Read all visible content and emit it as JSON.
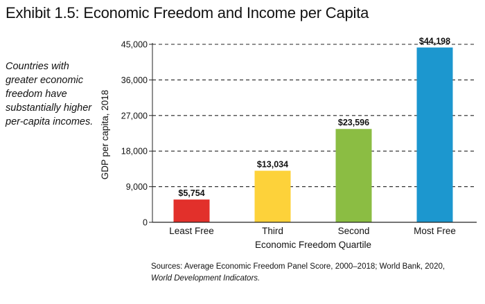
{
  "title": "Exhibit 1.5: Economic Freedom and Income per Capita",
  "sidenote": "Countries with greater economic freedom have substantially higher per-capita incomes.",
  "source": {
    "line": "Sources: Average Economic Freedom Panel Score, 2000–2018; World Bank, 2020,",
    "italic": "World Development Indicators."
  },
  "chart_data": {
    "type": "bar",
    "categories": [
      "Least Free",
      "Third",
      "Second",
      "Most Free"
    ],
    "values": [
      5754,
      13034,
      23596,
      44198
    ],
    "value_labels": [
      "$5,754",
      "$13,034",
      "$23,596",
      "$44,198"
    ],
    "colors": [
      "#e2302b",
      "#fdd23a",
      "#8bbd43",
      "#1c97cf"
    ],
    "xlabel": "Economic Freedom Quartile",
    "ylabel": "GDP per capita, 2018",
    "ylim": [
      0,
      45000
    ],
    "yticks": [
      0,
      9000,
      18000,
      27000,
      36000,
      45000
    ],
    "ytick_labels": [
      "0",
      "9,000",
      "18,000",
      "27,000",
      "36,000",
      "45,000"
    ],
    "grid": "dashed horizontal"
  }
}
